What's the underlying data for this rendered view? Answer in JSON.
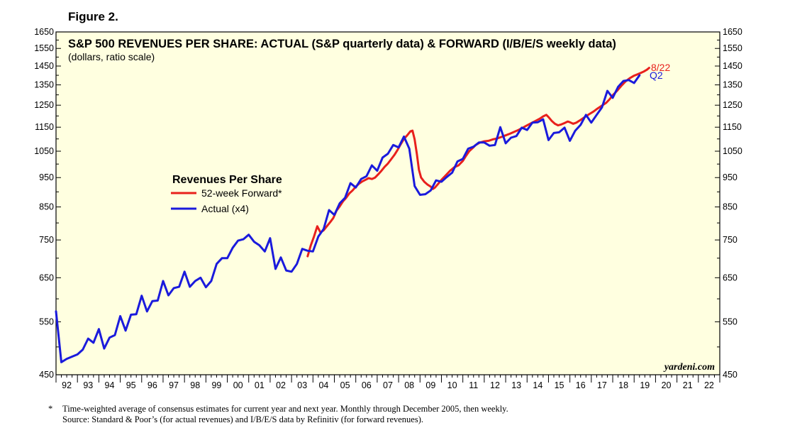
{
  "figure_label": "Figure 2.",
  "footnote": {
    "marker": "*",
    "line1": "Time-weighted average of consensus estimates for current year and next year. Monthly through December 2005, then weekly.",
    "line2": "Source: Standard & Poor’s (for actual revenues) and I/B/E/S data by Refinitiv (for forward revenues)."
  },
  "colors": {
    "plot_background": "#ffffe0",
    "forward": "#e8201c",
    "actual": "#1a1adc"
  },
  "chart_data": {
    "type": "line",
    "title": "S&P 500 REVENUES PER SHARE: ACTUAL (S&P quarterly data) & FORWARD (I/B/E/S weekly data)",
    "subtitle": "(dollars, ratio scale)",
    "legend_title": "Revenues Per Share",
    "watermark": "yardeni.com",
    "y_scale": "log",
    "ylim": [
      450,
      1650
    ],
    "xlim": [
      1992,
      2023
    ],
    "y_ticks": [
      450,
      550,
      650,
      750,
      850,
      950,
      1050,
      1150,
      1250,
      1350,
      1450,
      1550,
      1650
    ],
    "x_tick_labels": [
      "92",
      "93",
      "94",
      "95",
      "96",
      "97",
      "98",
      "99",
      "00",
      "01",
      "02",
      "03",
      "04",
      "05",
      "06",
      "07",
      "08",
      "09",
      "10",
      "11",
      "12",
      "13",
      "14",
      "15",
      "16",
      "17",
      "18",
      "19",
      "20",
      "21",
      "22"
    ],
    "series": [
      {
        "name": "52-week Forward*",
        "end_label": "8/22",
        "points": [
          [
            2003.75,
            705
          ],
          [
            2003.9,
            735
          ],
          [
            2004.05,
            760
          ],
          [
            2004.2,
            790
          ],
          [
            2004.35,
            772
          ],
          [
            2004.5,
            778
          ],
          [
            2004.65,
            790
          ],
          [
            2004.8,
            802
          ],
          [
            2004.95,
            815
          ],
          [
            2005.1,
            838
          ],
          [
            2005.25,
            852
          ],
          [
            2005.4,
            868
          ],
          [
            2005.55,
            880
          ],
          [
            2005.7,
            895
          ],
          [
            2005.85,
            905
          ],
          [
            2006.0,
            918
          ],
          [
            2006.15,
            928
          ],
          [
            2006.3,
            936
          ],
          [
            2006.45,
            942
          ],
          [
            2006.6,
            948
          ],
          [
            2006.75,
            945
          ],
          [
            2006.9,
            950
          ],
          [
            2007.05,
            962
          ],
          [
            2007.2,
            975
          ],
          [
            2007.35,
            990
          ],
          [
            2007.5,
            1002
          ],
          [
            2007.65,
            1018
          ],
          [
            2007.8,
            1035
          ],
          [
            2007.95,
            1055
          ],
          [
            2008.1,
            1078
          ],
          [
            2008.25,
            1100
          ],
          [
            2008.4,
            1115
          ],
          [
            2008.55,
            1132
          ],
          [
            2008.65,
            1135
          ],
          [
            2008.75,
            1098
          ],
          [
            2008.85,
            1040
          ],
          [
            2008.95,
            978
          ],
          [
            2009.05,
            950
          ],
          [
            2009.2,
            935
          ],
          [
            2009.35,
            925
          ],
          [
            2009.5,
            918
          ],
          [
            2009.6,
            910
          ],
          [
            2009.7,
            915
          ],
          [
            2009.85,
            928
          ],
          [
            2010.0,
            942
          ],
          [
            2010.2,
            958
          ],
          [
            2010.4,
            975
          ],
          [
            2010.6,
            988
          ],
          [
            2010.8,
            995
          ],
          [
            2011.0,
            1012
          ],
          [
            2011.15,
            1032
          ],
          [
            2011.3,
            1050
          ],
          [
            2011.45,
            1062
          ],
          [
            2011.6,
            1075
          ],
          [
            2011.8,
            1085
          ],
          [
            2012.0,
            1090
          ],
          [
            2012.2,
            1092
          ],
          [
            2012.4,
            1098
          ],
          [
            2012.6,
            1102
          ],
          [
            2012.8,
            1108
          ],
          [
            2013.0,
            1115
          ],
          [
            2013.2,
            1122
          ],
          [
            2013.4,
            1130
          ],
          [
            2013.6,
            1138
          ],
          [
            2013.8,
            1148
          ],
          [
            2014.0,
            1158
          ],
          [
            2014.2,
            1168
          ],
          [
            2014.4,
            1178
          ],
          [
            2014.6,
            1188
          ],
          [
            2014.75,
            1198
          ],
          [
            2014.9,
            1205
          ],
          [
            2015.0,
            1195
          ],
          [
            2015.15,
            1178
          ],
          [
            2015.3,
            1165
          ],
          [
            2015.45,
            1158
          ],
          [
            2015.6,
            1162
          ],
          [
            2015.75,
            1168
          ],
          [
            2015.9,
            1175
          ],
          [
            2016.0,
            1172
          ],
          [
            2016.15,
            1165
          ],
          [
            2016.3,
            1170
          ],
          [
            2016.5,
            1182
          ],
          [
            2016.7,
            1195
          ],
          [
            2016.9,
            1208
          ],
          [
            2017.1,
            1220
          ],
          [
            2017.3,
            1235
          ],
          [
            2017.5,
            1248
          ],
          [
            2017.7,
            1262
          ],
          [
            2017.85,
            1278
          ],
          [
            2018.0,
            1298
          ],
          [
            2018.2,
            1320
          ],
          [
            2018.4,
            1345
          ],
          [
            2018.6,
            1368
          ],
          [
            2018.8,
            1385
          ],
          [
            2019.0,
            1398
          ],
          [
            2019.15,
            1405
          ],
          [
            2019.3,
            1412
          ],
          [
            2019.45,
            1420
          ],
          [
            2019.6,
            1430
          ],
          [
            2019.7,
            1440
          ]
        ]
      },
      {
        "name": "Actual (x4)",
        "end_label": "Q2",
        "points": [
          [
            1992.0,
            572
          ],
          [
            1992.25,
            472
          ],
          [
            1992.5,
            478
          ],
          [
            1992.75,
            482
          ],
          [
            1993.0,
            486
          ],
          [
            1993.25,
            495
          ],
          [
            1993.5,
            516
          ],
          [
            1993.75,
            508
          ],
          [
            1994.0,
            535
          ],
          [
            1994.25,
            497
          ],
          [
            1994.5,
            518
          ],
          [
            1994.75,
            523
          ],
          [
            1995.0,
            562
          ],
          [
            1995.25,
            532
          ],
          [
            1995.5,
            565
          ],
          [
            1995.75,
            566
          ],
          [
            1996.0,
            607
          ],
          [
            1996.25,
            572
          ],
          [
            1996.5,
            595
          ],
          [
            1996.75,
            596
          ],
          [
            1997.0,
            642
          ],
          [
            1997.25,
            608
          ],
          [
            1997.5,
            625
          ],
          [
            1997.75,
            628
          ],
          [
            1998.0,
            665
          ],
          [
            1998.25,
            628
          ],
          [
            1998.5,
            642
          ],
          [
            1998.75,
            650
          ],
          [
            1999.0,
            627
          ],
          [
            1999.25,
            642
          ],
          [
            1999.5,
            685
          ],
          [
            1999.75,
            700
          ],
          [
            2000.0,
            700
          ],
          [
            2000.25,
            728
          ],
          [
            2000.5,
            748
          ],
          [
            2000.75,
            752
          ],
          [
            2001.0,
            765
          ],
          [
            2001.25,
            745
          ],
          [
            2001.5,
            735
          ],
          [
            2001.75,
            718
          ],
          [
            2002.0,
            755
          ],
          [
            2002.25,
            672
          ],
          [
            2002.5,
            702
          ],
          [
            2002.75,
            668
          ],
          [
            2003.0,
            665
          ],
          [
            2003.25,
            685
          ],
          [
            2003.5,
            725
          ],
          [
            2003.75,
            720
          ],
          [
            2004.0,
            718
          ],
          [
            2004.25,
            760
          ],
          [
            2004.5,
            782
          ],
          [
            2004.75,
            840
          ],
          [
            2005.0,
            825
          ],
          [
            2005.25,
            862
          ],
          [
            2005.5,
            880
          ],
          [
            2005.75,
            930
          ],
          [
            2006.0,
            915
          ],
          [
            2006.25,
            945
          ],
          [
            2006.5,
            955
          ],
          [
            2006.75,
            995
          ],
          [
            2007.0,
            975
          ],
          [
            2007.25,
            1025
          ],
          [
            2007.5,
            1040
          ],
          [
            2007.75,
            1075
          ],
          [
            2008.0,
            1065
          ],
          [
            2008.25,
            1110
          ],
          [
            2008.5,
            1060
          ],
          [
            2008.75,
            920
          ],
          [
            2009.0,
            890
          ],
          [
            2009.25,
            892
          ],
          [
            2009.5,
            905
          ],
          [
            2009.75,
            940
          ],
          [
            2010.0,
            935
          ],
          [
            2010.25,
            952
          ],
          [
            2010.5,
            968
          ],
          [
            2010.75,
            1010
          ],
          [
            2011.0,
            1020
          ],
          [
            2011.25,
            1060
          ],
          [
            2011.5,
            1068
          ],
          [
            2011.75,
            1085
          ],
          [
            2012.0,
            1085
          ],
          [
            2012.25,
            1072
          ],
          [
            2012.5,
            1075
          ],
          [
            2012.75,
            1150
          ],
          [
            2013.0,
            1082
          ],
          [
            2013.25,
            1105
          ],
          [
            2013.5,
            1112
          ],
          [
            2013.75,
            1148
          ],
          [
            2014.0,
            1138
          ],
          [
            2014.25,
            1170
          ],
          [
            2014.5,
            1172
          ],
          [
            2014.75,
            1185
          ],
          [
            2015.0,
            1095
          ],
          [
            2015.25,
            1125
          ],
          [
            2015.5,
            1128
          ],
          [
            2015.75,
            1148
          ],
          [
            2016.0,
            1092
          ],
          [
            2016.25,
            1135
          ],
          [
            2016.5,
            1160
          ],
          [
            2016.75,
            1205
          ],
          [
            2017.0,
            1170
          ],
          [
            2017.25,
            1205
          ],
          [
            2017.5,
            1240
          ],
          [
            2017.75,
            1320
          ],
          [
            2018.0,
            1285
          ],
          [
            2018.25,
            1340
          ],
          [
            2018.5,
            1370
          ],
          [
            2018.75,
            1375
          ],
          [
            2019.0,
            1360
          ],
          [
            2019.25,
            1400
          ]
        ]
      }
    ]
  }
}
